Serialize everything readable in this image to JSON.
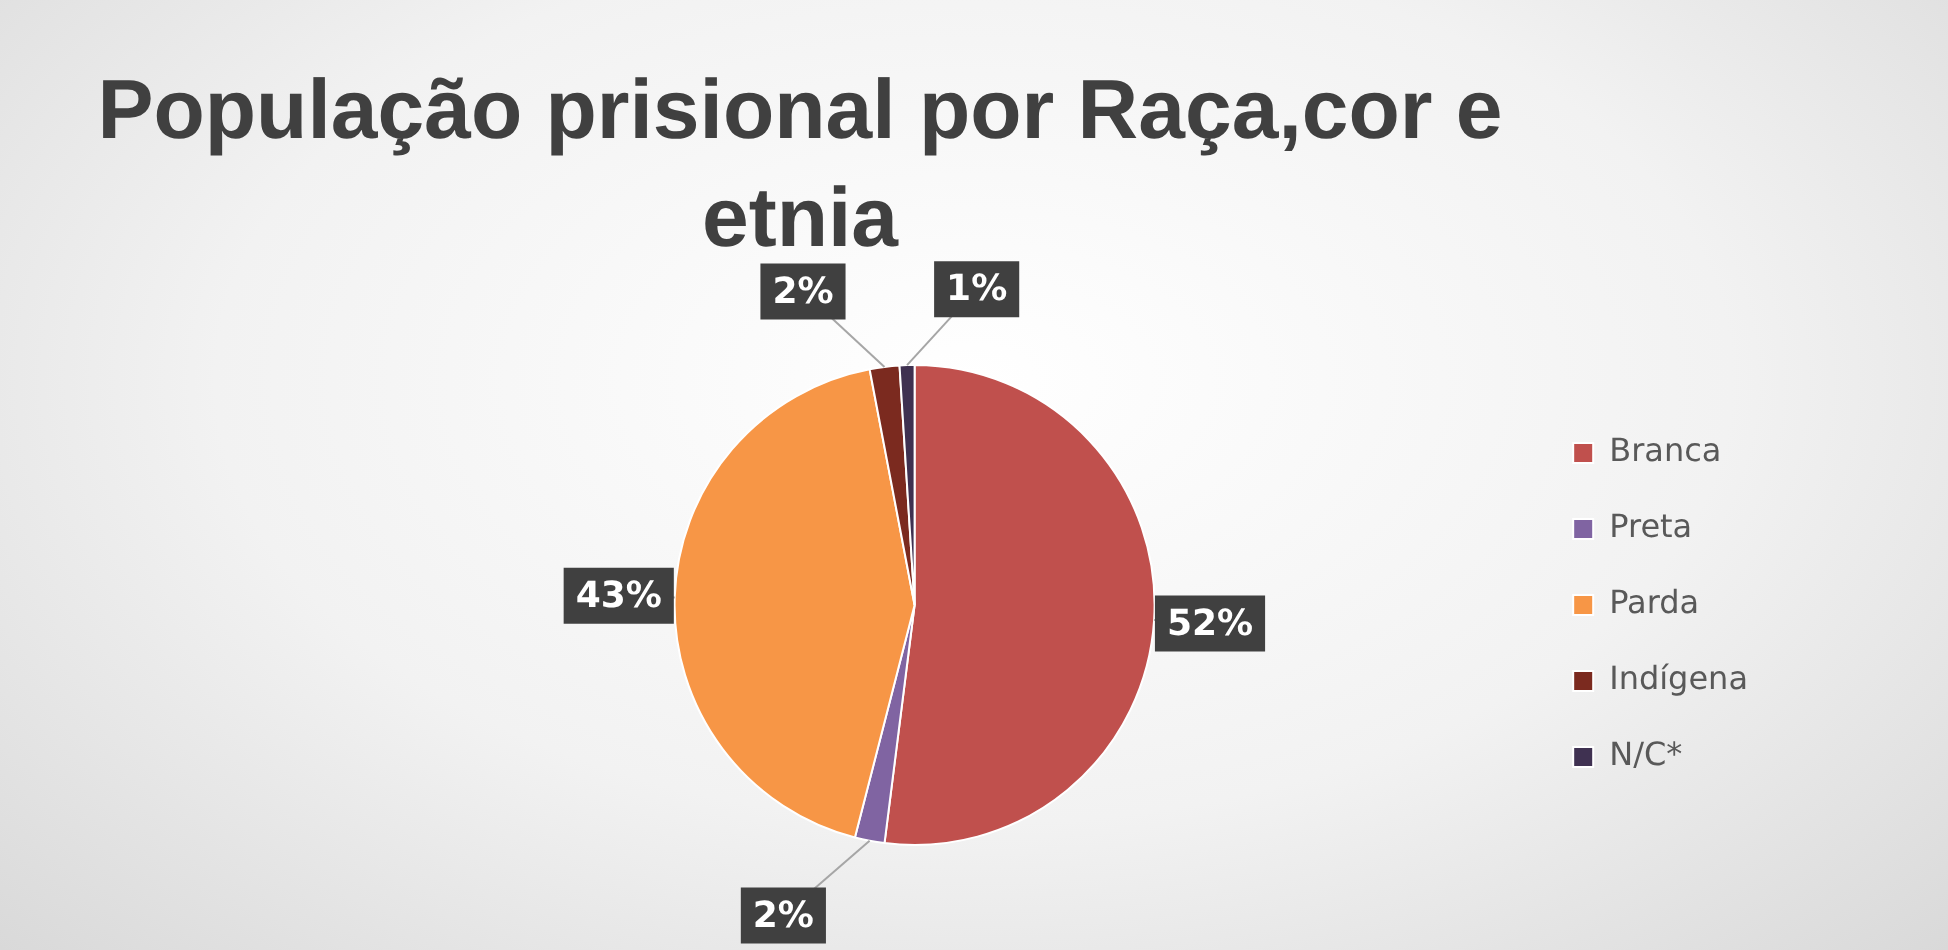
{
  "chart_data": {
    "type": "pie",
    "title": "População prisional por Raça,cor e etnia",
    "categories": [
      "Branca",
      "Preta",
      "Parda",
      "Indígena",
      "N/C*"
    ],
    "values": [
      52,
      2,
      43,
      2,
      1
    ],
    "colors": [
      "#c0504d",
      "#8064a2",
      "#f79646",
      "#7b2a1f",
      "#3f3151"
    ],
    "legend": "right",
    "value_labels": [
      "52%",
      "2%",
      "43%",
      "2%",
      "1%"
    ]
  }
}
